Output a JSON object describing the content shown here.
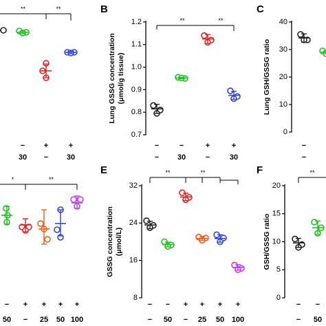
{
  "figure": {
    "panels": {
      "B": {
        "letter": "B",
        "ylabel_lines": [
          "Lung GSSG concentration",
          "(μmol/g tissue)"
        ],
        "y_ticks": [
          "0.7",
          "0.8",
          "0.9",
          "1.0",
          "1.1",
          "1.2"
        ],
        "sig": [
          "**",
          "**"
        ],
        "rows": [
          [
            "−",
            "−",
            "+",
            "+"
          ],
          [
            "−",
            "30",
            "−",
            "30"
          ]
        ]
      },
      "C": {
        "letter": "C",
        "ylabel_lines": [
          "Lung GSH/GSSG ratio"
        ],
        "y_ticks": [
          "0",
          "10",
          "20",
          "30",
          "40"
        ],
        "rows": [
          [
            "−"
          ],
          [
            "−"
          ]
        ]
      },
      "E": {
        "letter": "E",
        "ylabel_lines": [
          "GSSG concentration",
          "(μmol/L)"
        ],
        "y_ticks": [
          "8",
          "16",
          "24",
          "32"
        ],
        "sig": [
          "**",
          "**"
        ],
        "rows": [
          [
            "−",
            "−",
            "+",
            "+",
            "+",
            "+"
          ],
          [
            "−",
            "50",
            "−",
            "25",
            "50",
            "100"
          ]
        ]
      },
      "F": {
        "letter": "F",
        "ylabel_lines": [
          "GSH/GSSG ratio"
        ],
        "y_ticks": [
          "0",
          "5",
          "10",
          "15",
          "20"
        ],
        "sig": [
          "**"
        ],
        "rows": [
          [
            "−",
            "−"
          ],
          [
            "−",
            "50"
          ]
        ]
      },
      "A_partial": {
        "sig": [
          "**",
          "**"
        ],
        "rows": [
          [
            "−",
            "+",
            "+"
          ],
          [
            "30",
            "−",
            "30"
          ]
        ]
      },
      "D_partial": {
        "sig": [
          "*",
          "**"
        ],
        "rows": [
          [
            "−",
            "+",
            "+",
            "+",
            "+"
          ],
          [
            "50",
            "−",
            "25",
            "50",
            "100"
          ]
        ]
      }
    }
  },
  "colors": {
    "black": "#222222",
    "green": "#1fbf1f",
    "red": "#e02020",
    "blue": "#3344cc",
    "orange": "#f05a1e",
    "purple": "#c43cf0"
  },
  "chart_data": [
    {
      "panel": "B",
      "type": "scatter",
      "ylabel": "Lung GSSG concentration (μmol/g tissue)",
      "ylim": [
        0.7,
        1.2
      ],
      "categories": [
        "1",
        "2",
        "3",
        "4"
      ],
      "colors": [
        "black",
        "green",
        "red",
        "blue"
      ],
      "points": [
        [
          0.83,
          0.81,
          0.795
        ],
        [
          0.955,
          0.95,
          0.952
        ],
        [
          1.14,
          1.12,
          1.11
        ],
        [
          0.895,
          0.87,
          0.86
        ]
      ],
      "mean": [
        0.815,
        0.952,
        1.125,
        0.875
      ],
      "sd": [
        0.02,
        0.003,
        0.02,
        0.018
      ]
    },
    {
      "panel": "C",
      "type": "scatter",
      "ylabel": "Lung GSH/GSSG ratio",
      "ylim": [
        0,
        40
      ],
      "categories": [
        "1",
        "2"
      ],
      "colors": [
        "black",
        "green"
      ],
      "points": [
        [
          35.5,
          33.5,
          33.5
        ],
        [
          29.5,
          29,
          28.5
        ]
      ],
      "mean": [
        34.2,
        29
      ],
      "sd": [
        1.5,
        0.5
      ]
    },
    {
      "panel": "E",
      "type": "scatter",
      "ylabel": "GSSG concentration (μmol/L)",
      "ylim": [
        8,
        32
      ],
      "categories": [
        "1",
        "2",
        "3",
        "4",
        "5",
        "6"
      ],
      "colors": [
        "black",
        "green",
        "red",
        "orange",
        "blue",
        "purple"
      ],
      "points": [
        [
          24.5,
          23.5,
          23.0
        ],
        [
          20.0,
          19.3,
          19.0
        ],
        [
          30.5,
          29.5,
          29.0
        ],
        [
          21.0,
          20.8,
          20.3
        ],
        [
          21.5,
          20.8,
          20.0
        ],
        [
          15.0,
          14.3,
          14.0
        ]
      ],
      "mean": [
        23.6,
        19.4,
        29.6,
        20.7,
        20.7,
        14.5
      ],
      "sd": [
        0.8,
        0.5,
        0.8,
        0.4,
        0.8,
        0.6
      ]
    },
    {
      "panel": "F",
      "type": "scatter",
      "ylabel": "GSH/GSSG ratio",
      "ylim": [
        0,
        20
      ],
      "categories": [
        "1",
        "2"
      ],
      "colors": [
        "black",
        "green"
      ],
      "points": [
        [
          10.5,
          9.5,
          9.0
        ],
        [
          13.5,
          12.5,
          11.5
        ]
      ],
      "mean": [
        9.8,
        12.5
      ],
      "sd": [
        0.8,
        1.2
      ]
    },
    {
      "panel": "A (partial)",
      "type": "scatter",
      "categories": [
        "2",
        "3",
        "4"
      ],
      "colors": [
        "green",
        "red",
        "blue"
      ],
      "points_unscaled": true
    },
    {
      "panel": "D (partial)",
      "type": "scatter",
      "categories": [
        "2",
        "3",
        "4",
        "5",
        "6"
      ],
      "colors": [
        "green",
        "red",
        "orange",
        "blue",
        "purple"
      ],
      "points_unscaled": true
    }
  ]
}
